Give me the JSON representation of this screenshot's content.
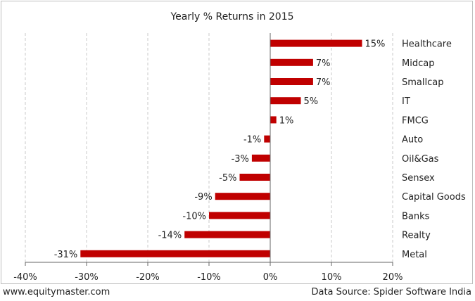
{
  "footer": {
    "site": "www.equitymaster.com",
    "source": "Data Source: Spider Software India"
  },
  "colors": {
    "bar": "#c00000",
    "grid": "#c8c8c8",
    "axis": "#666666"
  },
  "chart_data": {
    "type": "bar",
    "orientation": "horizontal",
    "title": "Yearly % Returns in 2015",
    "categories": [
      "Healthcare",
      "Midcap",
      "Smallcap",
      "IT",
      "FMCG",
      "Auto",
      "Oil&Gas",
      "Sensex",
      "Capital Goods",
      "Banks",
      "Realty",
      "Metal"
    ],
    "values": [
      15,
      7,
      7,
      5,
      1,
      -1,
      -3,
      -5,
      -9,
      -10,
      -14,
      -31
    ],
    "data_labels": [
      "15%",
      "7%",
      "7%",
      "5%",
      "1%",
      "-1%",
      "-3%",
      "-5%",
      "-9%",
      "-10%",
      "-14%",
      "-31%"
    ],
    "xlim": [
      -40,
      20
    ],
    "xticks": [
      -40,
      -30,
      -20,
      -10,
      0,
      10,
      20
    ],
    "xtick_labels": [
      "-40%",
      "-30%",
      "-20%",
      "-10%",
      "0%",
      "10%",
      "20%"
    ],
    "xlabel": "",
    "ylabel": "",
    "grid": "vertical-dashed",
    "legend": "none"
  }
}
